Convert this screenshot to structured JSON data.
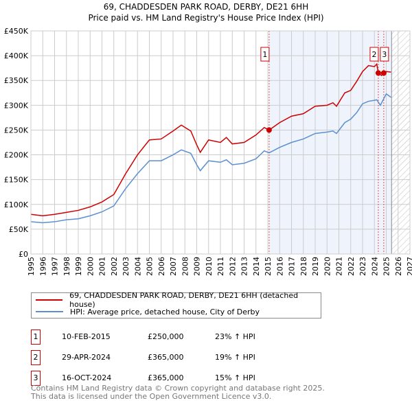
{
  "chart_data": {
    "type": "line",
    "title": "69, CHADDESDEN PARK ROAD, DERBY, DE21 6HH",
    "subtitle": "Price paid vs. HM Land Registry's House Price Index (HPI)",
    "xlim": [
      1995,
      2027
    ],
    "ylim": [
      0,
      450000
    ],
    "yticks": [
      0,
      50000,
      100000,
      150000,
      200000,
      250000,
      300000,
      350000,
      400000,
      450000
    ],
    "ytick_labels": [
      "£0",
      "£50K",
      "£100K",
      "£150K",
      "£200K",
      "£250K",
      "£300K",
      "£350K",
      "£400K",
      "£450K"
    ],
    "xticks": [
      1995,
      1996,
      1997,
      1998,
      1999,
      2000,
      2001,
      2002,
      2003,
      2004,
      2005,
      2006,
      2007,
      2008,
      2009,
      2010,
      2011,
      2012,
      2013,
      2014,
      2015,
      2016,
      2017,
      2018,
      2019,
      2020,
      2021,
      2022,
      2023,
      2024,
      2025,
      2026,
      2027
    ],
    "grid": true,
    "shaded_from": 2015.11,
    "hatched_from": 2025.45,
    "series": [
      {
        "name": "69, CHADDESDEN PARK ROAD, DERBY, DE21 6HH (detached house)",
        "color": "#cc0000",
        "x": [
          1995,
          1996,
          1997,
          1998,
          1999,
          2000,
          2001,
          2002,
          2003,
          2004,
          2005,
          2006,
          2007,
          2007.7,
          2008.5,
          2009,
          2009.3,
          2010,
          2011,
          2011.5,
          2012,
          2013,
          2014,
          2014.7,
          2015.11,
          2016,
          2017,
          2018,
          2019,
          2020,
          2020.5,
          2020.8,
          2021.5,
          2022,
          2022.5,
          2023,
          2023.5,
          2024,
          2024.2,
          2024.33,
          2024.6,
          2024.79,
          2025,
          2025.4
        ],
        "y": [
          80000,
          77000,
          80000,
          84000,
          88000,
          95000,
          105000,
          120000,
          162000,
          200000,
          230000,
          232000,
          248000,
          260000,
          248000,
          220000,
          205000,
          230000,
          225000,
          235000,
          222000,
          225000,
          240000,
          255000,
          250000,
          265000,
          278000,
          283000,
          298000,
          300000,
          305000,
          298000,
          325000,
          330000,
          348000,
          368000,
          380000,
          378000,
          383000,
          365000,
          360000,
          365000,
          368000,
          367000
        ]
      },
      {
        "name": "HPI: Average price, detached house, City of Derby",
        "color": "#5b8fd0",
        "x": [
          1995,
          1996,
          1997,
          1998,
          1999,
          2000,
          2001,
          2002,
          2003,
          2004,
          2005,
          2006,
          2007,
          2007.7,
          2008.5,
          2009,
          2009.3,
          2010,
          2011,
          2011.5,
          2012,
          2013,
          2014,
          2014.7,
          2015.11,
          2016,
          2017,
          2018,
          2019,
          2020,
          2020.5,
          2020.8,
          2021.5,
          2022,
          2022.5,
          2023,
          2023.5,
          2024,
          2024.2,
          2024.5,
          2025,
          2025.4
        ],
        "y": [
          65000,
          63000,
          65000,
          69000,
          71000,
          77000,
          85000,
          97000,
          132000,
          162000,
          188000,
          188000,
          200000,
          210000,
          203000,
          180000,
          168000,
          188000,
          185000,
          190000,
          180000,
          183000,
          192000,
          208000,
          204000,
          215000,
          225000,
          232000,
          243000,
          246000,
          248000,
          243000,
          265000,
          272000,
          285000,
          303000,
          308000,
          310000,
          311000,
          300000,
          323000,
          316000
        ]
      }
    ],
    "sales": [
      {
        "num": "1",
        "x": 2015.11,
        "y": 250000,
        "date": "10-FEB-2015",
        "price": "£250,000",
        "hpi": "23% ↑ HPI"
      },
      {
        "num": "2",
        "x": 2024.33,
        "y": 365000,
        "date": "29-APR-2024",
        "price": "£365,000",
        "hpi": "19% ↑ HPI"
      },
      {
        "num": "3",
        "x": 2024.79,
        "y": 365000,
        "date": "16-OCT-2024",
        "price": "£365,000",
        "hpi": "15% ↑ HPI"
      }
    ]
  },
  "footer": {
    "line1": "Contains HM Land Registry data © Crown copyright and database right 2025.",
    "line2": "This data is licensed under the Open Government Licence v3.0."
  }
}
